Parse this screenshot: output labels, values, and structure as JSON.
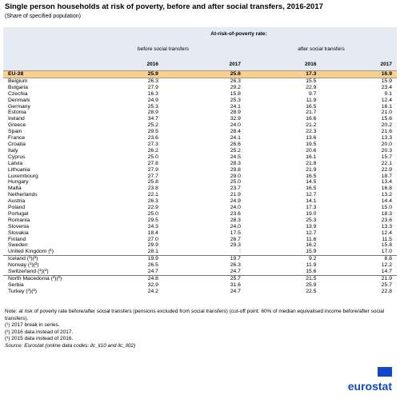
{
  "header": {
    "title": "Single person households at risk of poverty, before and after social transfers, 2016-2017",
    "subtitle": "(Share of specified population)"
  },
  "table": {
    "measure": "At-risk-of-poverty rate:",
    "groups_header": [
      "before social transfers",
      "after social transfers"
    ],
    "years": [
      "2016",
      "2017",
      "2016",
      "2017"
    ],
    "groups": [
      {
        "rows": [
          [
            "EU-28",
            "25.9",
            "25.6",
            "17.3",
            "16.9"
          ]
        ]
      },
      {
        "rows": [
          [
            "Belgium",
            "26.3",
            "26.3",
            "15.5",
            "15.9"
          ],
          [
            "Bulgaria",
            "27.9",
            "29.2",
            "22.9",
            "23.4"
          ],
          [
            "Czechia",
            "16.3",
            "15.8",
            "9.7",
            "9.1"
          ],
          [
            "Denmark",
            "24.9",
            "25.3",
            "11.9",
            "12.4"
          ],
          [
            "Germany",
            "25.3",
            "24.1",
            "16.5",
            "16.1"
          ],
          [
            "Estonia",
            "28.9",
            "28.9",
            "21.7",
            "21.0"
          ],
          [
            "Ireland",
            "34.7",
            "32.9",
            "16.6",
            "15.6"
          ],
          [
            "Greece",
            "25.2",
            "24.0",
            "21.2",
            "20.2"
          ],
          [
            "Spain",
            "29.5",
            "28.4",
            "22.3",
            "21.6"
          ],
          [
            "France",
            "23.6",
            "24.1",
            "13.6",
            "13.3"
          ],
          [
            "Croatia",
            "27.3",
            "26.6",
            "19.5",
            "20.0"
          ],
          [
            "Italy",
            "26.2",
            "25.2",
            "20.6",
            "20.3"
          ],
          [
            "Cyprus",
            "25.0",
            "24.5",
            "16.1",
            "15.7"
          ],
          [
            "Latvia",
            "27.8",
            "28.3",
            "21.8",
            "22.1"
          ],
          [
            "Lithuania",
            "27.9",
            "29.8",
            "21.9",
            "22.9"
          ],
          [
            "Luxembourg",
            "27.7",
            "29.0",
            "16.5",
            "18.7"
          ],
          [
            "Hungary",
            "25.8",
            "25.0",
            "14.5",
            "13.4"
          ],
          [
            "Malta",
            "23.8",
            "23.7",
            "16.5",
            "16.8"
          ],
          [
            "Netherlands",
            "22.1",
            "21.9",
            "12.7",
            "13.2"
          ],
          [
            "Austria",
            "26.3",
            "24.9",
            "14.1",
            "14.4"
          ],
          [
            "Poland",
            "22.9",
            "24.0",
            "17.3",
            "15.0"
          ],
          [
            "Portugal",
            "25.0",
            "23.6",
            "19.0",
            "18.3"
          ],
          [
            "Romania",
            "29.5",
            "28.3",
            "25.3",
            "23.6"
          ],
          [
            "Slovenia",
            "24.3",
            "24.0",
            "13.9",
            "13.3"
          ],
          [
            "Slovakia",
            "18.4",
            "17.5",
            "12.7",
            "12.4"
          ],
          [
            "Finland",
            "27.0",
            "26.7",
            "11.6",
            "11.5"
          ],
          [
            "Sweden",
            "29.9",
            "29.3",
            "16.2",
            "15.8"
          ],
          [
            "United Kingdom (¹)",
            "28.1",
            ":",
            "15.9",
            "17.0"
          ]
        ]
      },
      {
        "rows": [
          [
            "Iceland (¹)(²)",
            "19.9",
            "19.7",
            "9.2",
            "8.8"
          ],
          [
            "Norway (¹)(²)",
            "26.5",
            "26.3",
            "11.9",
            "12.2"
          ],
          [
            "Switzerland (¹)(²)",
            "24.7",
            "24.7",
            "15.6",
            "14.7"
          ]
        ]
      },
      {
        "rows": [
          [
            "North Macedonia (³)(²)",
            "24.8",
            "25.7",
            "21.5",
            "21.9"
          ],
          [
            "Serbia",
            "32.9",
            "31.6",
            "25.9",
            "25.7"
          ],
          [
            "Turkey (³)(²)",
            "24.2",
            "24.7",
            "22.5",
            "22.8"
          ]
        ]
      }
    ]
  },
  "notes": [
    "Note: at risk of poverty rate before/after social transfers (pensions excluded from social transfers) (cut-off point: 60% of median equivalised income before/after social transfers).",
    "(¹) 2017 break in series.",
    "(²) 2016 data instead of 2017.",
    "(³) 2015 data instead of 2016.",
    "Source: Eurostat (online data codes: ilc_li10 and ilc_li02)"
  ],
  "logo": "eurostat"
}
